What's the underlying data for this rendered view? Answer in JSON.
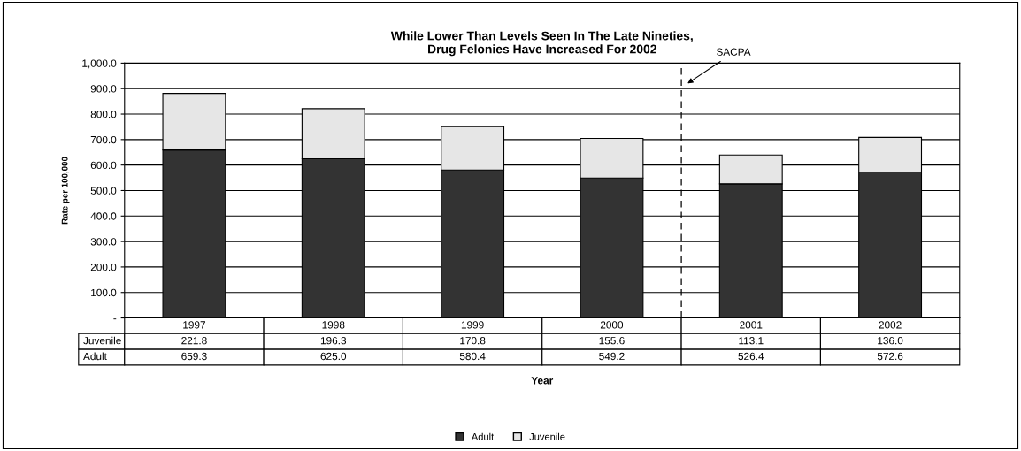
{
  "chart_data": {
    "type": "bar",
    "title": "While Lower Than Levels Seen In The Late Nineties,\nDrug Felonies Have Increased For 2002",
    "xlabel": "Year",
    "ylabel": "Rate per 100,000",
    "categories": [
      "1997",
      "1998",
      "1999",
      "2000",
      "2001",
      "2002"
    ],
    "series": [
      {
        "name": "Adult",
        "color": "#333333",
        "values": [
          659.3,
          625.0,
          580.4,
          549.2,
          526.4,
          572.6
        ],
        "value_labels": [
          "659.3",
          "625.0",
          "580.4",
          "549.2",
          "526.4",
          "572.6"
        ]
      },
      {
        "name": "Juvenile",
        "color": "#e6e6e6",
        "values": [
          221.8,
          196.3,
          170.8,
          155.6,
          113.1,
          136.0
        ],
        "value_labels": [
          "221.8",
          "196.3",
          "170.8",
          "155.6",
          "113.1",
          "136.0"
        ]
      }
    ],
    "stacked": true,
    "ylim": [
      0,
      1000
    ],
    "yticks": [
      {
        "value": 0,
        "label": "-"
      },
      {
        "value": 100,
        "label": "100.0"
      },
      {
        "value": 200,
        "label": "200.0"
      },
      {
        "value": 300,
        "label": "300.0"
      },
      {
        "value": 400,
        "label": "400.0"
      },
      {
        "value": 500,
        "label": "500.0"
      },
      {
        "value": 600,
        "label": "600.0"
      },
      {
        "value": 700,
        "label": "700.0"
      },
      {
        "value": 800,
        "label": "800.0"
      },
      {
        "value": 900,
        "label": "900.0"
      },
      {
        "value": 1000,
        "label": "1,000.0"
      }
    ],
    "ref_lines": [
      {
        "axis": "x",
        "value": "2001",
        "label": "SACPA",
        "line_style": "dashed",
        "color": "#000000"
      }
    ],
    "grid": "y",
    "legend": "bottom"
  }
}
